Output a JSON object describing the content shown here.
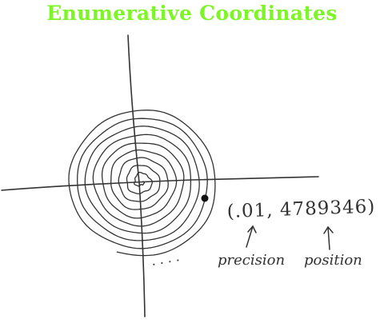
{
  "title": "Enumerative Coordinates",
  "coordinate": {
    "precision_value": ".01",
    "position_value": "4789346",
    "text": "(.01, 4789346)"
  },
  "annotations": {
    "precision_label": "precision",
    "position_label": "position",
    "ellipsis": ". . . ."
  },
  "colors": {
    "title": "#7ef526",
    "ink": "#333333"
  }
}
